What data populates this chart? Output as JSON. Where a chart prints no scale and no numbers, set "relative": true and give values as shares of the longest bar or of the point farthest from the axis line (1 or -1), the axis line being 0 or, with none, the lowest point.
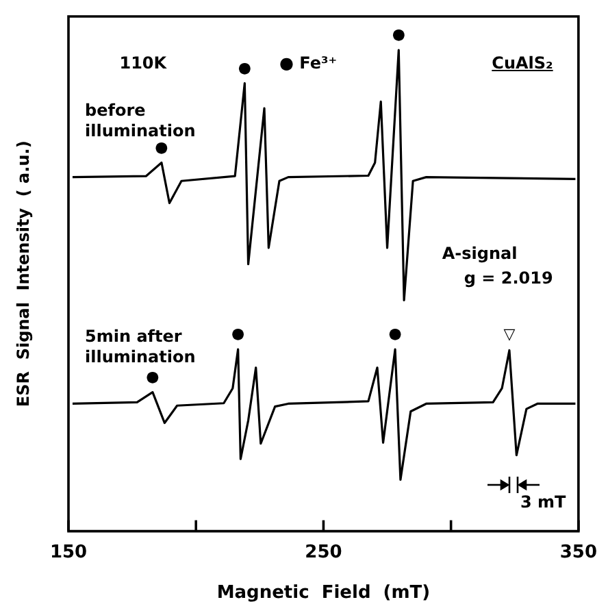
{
  "chart_data": {
    "type": "line",
    "relative": true,
    "xlabel": "Magnetic  Field  (mT)",
    "ylabel": "ESR  Signal  Intensity  ( a.u.)",
    "xlim": [
      150,
      350
    ],
    "xticks": [
      150,
      {
        "value": 200,
        "label": null
      },
      250,
      {
        "value": 300,
        "label": null
      },
      350
    ],
    "grid": false,
    "legend": false,
    "marker": "none",
    "line_style": "solid",
    "series": [
      {
        "name": "before illumination",
        "color": "#000000",
        "x": [
          151.6,
          180.4,
          186.5,
          189.6,
          194.3,
          215.3,
          219.1,
          220.5,
          226.8,
          228.5,
          232.7,
          236.2,
          267.6,
          270.2,
          272.5,
          275.0,
          279.5,
          281.6,
          285.1,
          290.3,
          348.8
        ],
        "values": [
          0.736,
          0.738,
          0.766,
          0.682,
          0.728,
          0.738,
          0.931,
          0.555,
          0.879,
          0.589,
          0.728,
          0.736,
          0.739,
          0.766,
          0.893,
          0.589,
          1.0,
          0.48,
          0.728,
          0.736,
          0.732
        ]
      },
      {
        "name": "5min after illumination",
        "color": "#000000",
        "x": [
          151.6,
          176.9,
          183.0,
          187.7,
          192.6,
          210.9,
          214.4,
          216.5,
          217.5,
          220.5,
          223.5,
          225.4,
          231.0,
          236.2,
          267.6,
          271.1,
          273.4,
          278.1,
          280.2,
          284.2,
          290.3,
          316.5,
          320.0,
          322.9,
          325.7,
          329.6,
          333.9,
          348.8
        ],
        "values": [
          0.265,
          0.268,
          0.289,
          0.225,
          0.261,
          0.266,
          0.297,
          0.378,
          0.15,
          0.23,
          0.34,
          0.182,
          0.259,
          0.265,
          0.27,
          0.34,
          0.184,
          0.378,
          0.107,
          0.249,
          0.265,
          0.268,
          0.297,
          0.376,
          0.158,
          0.254,
          0.265,
          0.265
        ]
      }
    ],
    "annotations": [
      "110K",
      "● Fe³⁺",
      "CuAlS₂",
      "A-signal",
      "g = 2.019",
      {
        "text": "●",
        "x": 186.5,
        "y": 0.766
      },
      {
        "text": "●",
        "x": 219.1,
        "y": 0.931
      },
      {
        "text": "●",
        "x": 279.5,
        "y": 1.0
      },
      {
        "text": "●",
        "x": 183.0,
        "y": 0.289
      },
      {
        "text": "●",
        "x": 216.5,
        "y": 0.378
      },
      {
        "text": "●",
        "x": 278.1,
        "y": 0.378
      },
      {
        "text": "▽",
        "x": 322.9,
        "y": 0.376
      },
      {
        "text": "3 mT",
        "x": 324.3,
        "y": 0.158
      }
    ]
  }
}
